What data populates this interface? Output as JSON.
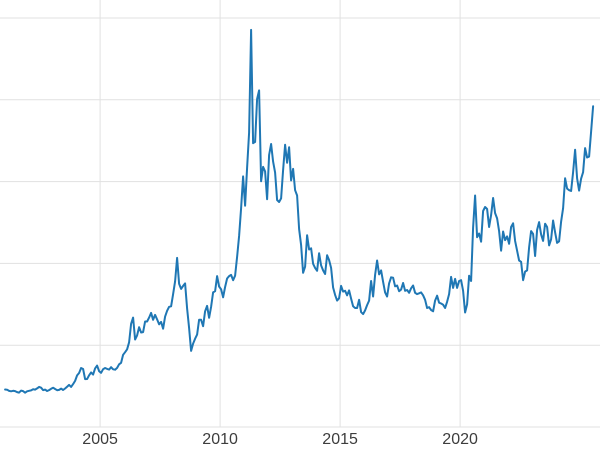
{
  "chart_data": {
    "type": "line",
    "title": "",
    "line_color": "#1f77b4",
    "grid_color": "#e1e1e1",
    "background": "#ffffff",
    "x_axis_range": [
      2000.83,
      2025.83
    ],
    "y_axis_range": [
      0,
      52.2
    ],
    "x_ticks": [
      2005,
      2010,
      2015,
      2020
    ],
    "x_tick_labels": [
      "2005",
      "2010",
      "2015",
      "2020"
    ],
    "y_gridlines": [
      0,
      10,
      20,
      30,
      40,
      50
    ],
    "x_start_year": 2001.042,
    "x_step_years": 0.0833333,
    "values": [
      4.59,
      4.56,
      4.41,
      4.37,
      4.43,
      4.39,
      4.27,
      4.21,
      4.45,
      4.39,
      4.19,
      4.36,
      4.43,
      4.48,
      4.61,
      4.57,
      4.72,
      4.9,
      4.81,
      4.51,
      4.57,
      4.4,
      4.51,
      4.67,
      4.81,
      4.65,
      4.5,
      4.53,
      4.7,
      4.52,
      4.71,
      4.93,
      5.15,
      4.9,
      5.24,
      5.63,
      6.31,
      6.6,
      7.21,
      7.09,
      5.85,
      5.87,
      6.32,
      6.68,
      6.4,
      7.16,
      7.5,
      6.82,
      6.63,
      7.07,
      7.21,
      7.1,
      7.02,
      7.31,
      7.05,
      7.0,
      7.22,
      7.67,
      7.85,
      8.83,
      9.14,
      9.5,
      10.36,
      12.61,
      13.38,
      10.7,
      11.2,
      12.2,
      11.55,
      11.6,
      12.9,
      12.9,
      13.38,
      13.95,
      13.11,
      13.7,
      13.15,
      12.55,
      12.85,
      12.02,
      13.5,
      14.2,
      14.7,
      14.76,
      16.23,
      17.81,
      20.67,
      17.5,
      16.88,
      17.25,
      17.55,
      14.5,
      12.1,
      9.3,
      10.2,
      10.79,
      11.3,
      13.1,
      13.11,
      12.32,
      14.14,
      14.8,
      13.35,
      14.7,
      16.45,
      16.6,
      18.45,
      17.17,
      16.83,
      15.85,
      17.11,
      18.15,
      18.45,
      18.6,
      17.95,
      18.5,
      20.8,
      23.35,
      26.75,
      30.63,
      27.05,
      31.7,
      36.0,
      48.55,
      34.7,
      34.85,
      40.1,
      41.15,
      30.05,
      31.8,
      31.25,
      27.85,
      33.25,
      34.6,
      32.45,
      31.1,
      27.75,
      27.5,
      27.95,
      31.4,
      34.5,
      32.3,
      34.2,
      30.15,
      31.55,
      28.95,
      28.3,
      24.2,
      22.25,
      18.85,
      19.6,
      23.45,
      21.7,
      21.85,
      19.95,
      19.45,
      19.1,
      21.25,
      19.75,
      19.15,
      18.7,
      21.0,
      20.4,
      19.45,
      17.05,
      16.15,
      15.45,
      15.75,
      17.25,
      16.55,
      16.65,
      16.1,
      16.7,
      15.7,
      14.75,
      14.55,
      14.55,
      15.55,
      14.05,
      13.8,
      14.25,
      14.9,
      15.45,
      17.85,
      15.95,
      18.6,
      20.35,
      18.65,
      19.15,
      17.75,
      16.45,
      15.95,
      17.55,
      18.3,
      18.25,
      17.2,
      17.3,
      16.6,
      16.8,
      17.6,
      16.65,
      16.75,
      16.4,
      16.95,
      17.3,
      16.4,
      16.25,
      16.35,
      16.45,
      16.1,
      15.55,
      14.55,
      14.65,
      14.3,
      14.15,
      15.45,
      16.05,
      15.2,
      15.1,
      14.95,
      14.55,
      15.3,
      16.25,
      18.35,
      17.0,
      18.1,
      17.0,
      17.85,
      17.95,
      16.65,
      14.0,
      15.0,
      18.5,
      17.85,
      24.4,
      28.3,
      23.2,
      23.65,
      22.65,
      26.4,
      26.9,
      26.65,
      24.45,
      25.9,
      28.0,
      26.15,
      25.5,
      23.95,
      21.55,
      23.9,
      22.85,
      23.3,
      22.4,
      24.45,
      24.9,
      22.75,
      21.55,
      20.35,
      20.2,
      17.95,
      19.0,
      19.15,
      21.95,
      23.95,
      23.6,
      20.9,
      24.1,
      25.05,
      23.55,
      22.75,
      24.85,
      24.45,
      22.2,
      22.95,
      25.25,
      23.8,
      22.5,
      22.7,
      25.1,
      26.75,
      30.4,
      29.15,
      28.95,
      28.85,
      31.15,
      33.9,
      30.4,
      28.9,
      30.35,
      31.15,
      34.1,
      32.95,
      33.05,
      36.1,
      39.2
    ]
  }
}
